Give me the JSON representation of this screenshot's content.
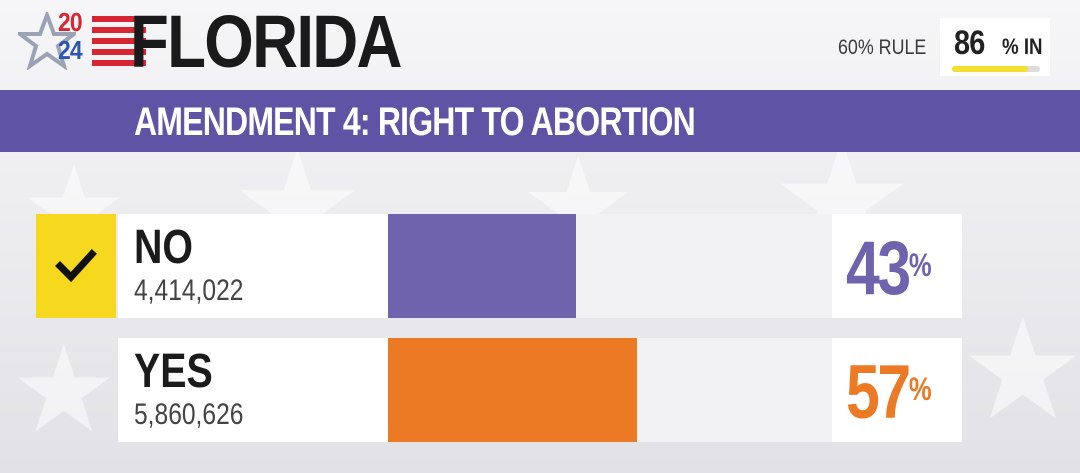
{
  "header": {
    "year_top": "20",
    "year_bottom": "24",
    "state": "FLORIDA",
    "rule": "60% RULE",
    "reporting_value": "86",
    "reporting_unit": "% IN",
    "reporting_fraction": 0.86
  },
  "race": {
    "title": "AMENDMENT 4: RIGHT TO ABORTION"
  },
  "results": [
    {
      "name": "NO",
      "votes": "4,414,022",
      "percent": "43",
      "percent_sign": "%",
      "share": 0.43,
      "color": "#6f63ad",
      "winner": true
    },
    {
      "name": "YES",
      "votes": "5,860,626",
      "percent": "57",
      "percent_sign": "%",
      "share": 0.57,
      "color": "#ec7a25",
      "winner": false
    }
  ],
  "icons": {
    "logo": "star-icon",
    "winner": "checkmark-icon"
  }
}
